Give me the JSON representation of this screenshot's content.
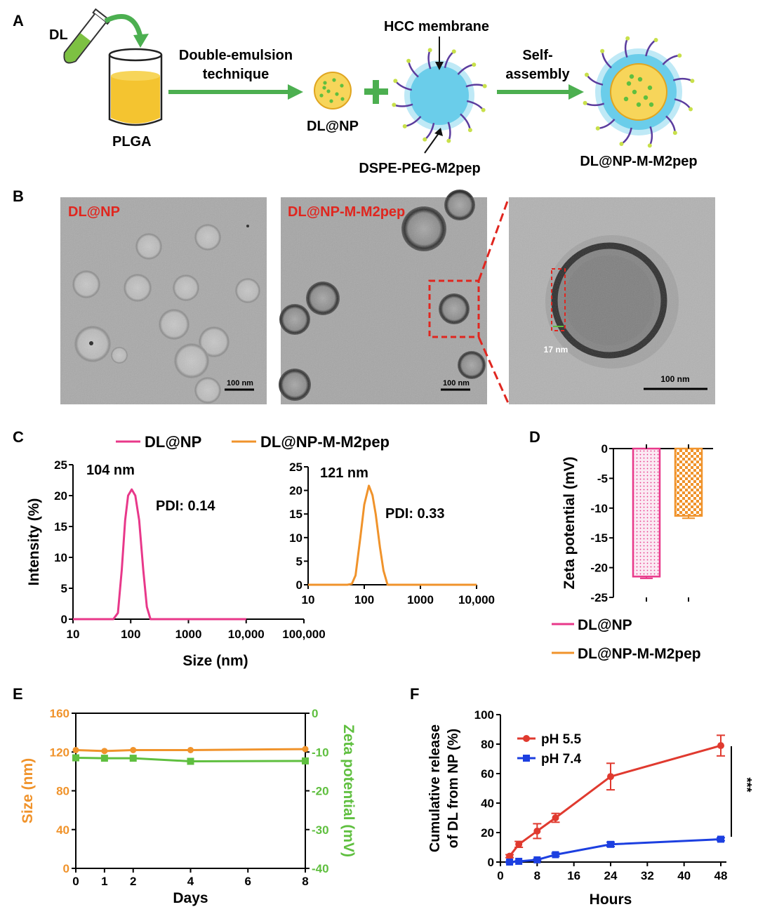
{
  "panels": {
    "A": "A",
    "B": "B",
    "C": "C",
    "D": "D",
    "E": "E",
    "F": "F"
  },
  "schematic": {
    "dl": "DL",
    "plga": "PLGA",
    "arrow1_line1": "Double-emulsion",
    "arrow1_line2": "technique",
    "dlnp": "DL@NP",
    "hcc": "HCC membrane",
    "dspe": "DSPE-PEG-M2pep",
    "arrow2_line1": "Self-",
    "arrow2_line2": "assembly",
    "product": "DL@NP-M-M2pep",
    "colors": {
      "arrow": "#4caf50",
      "liquid": "#f4c430",
      "membrane": "#5bc8e8",
      "particle": "#7dc142",
      "lipid": "#5b3c9e"
    }
  },
  "tem": {
    "label1": "DL@NP",
    "label2": "DL@NP-M-M2pep",
    "scale1": "100 nm",
    "scale2": "100 nm",
    "scale3": "100 nm",
    "thickness": "17 nm",
    "label_color": "#e0261f"
  },
  "chart_data": [
    {
      "id": "C1",
      "type": "line",
      "xscale": "log",
      "xlabel": "Size (nm)",
      "ylabel": "Intensity (%)",
      "xlim": [
        10,
        100000
      ],
      "ylim": [
        0,
        25
      ],
      "xticks": [
        {
          "v": 10,
          "label": "10"
        },
        {
          "v": 100,
          "label": "100"
        },
        {
          "v": 1000,
          "label": "1000"
        },
        {
          "v": 10000,
          "label": "10,000"
        },
        {
          "v": 100000,
          "label": "100,000"
        }
      ],
      "yticks": [
        0,
        5,
        10,
        15,
        20,
        25
      ],
      "annotation_size": "104 nm",
      "annotation_pdi": "PDI: 0.14",
      "series": [
        {
          "name": "DL@NP",
          "color": "#e8388a",
          "x": [
            10,
            50,
            60,
            70,
            80,
            90,
            104,
            120,
            140,
            165,
            190,
            220,
            300,
            1000,
            10000
          ],
          "y": [
            0,
            0,
            1,
            8,
            16,
            20,
            21,
            20,
            16,
            8,
            2,
            0,
            0,
            0,
            0
          ]
        }
      ]
    },
    {
      "id": "C2",
      "type": "line",
      "xscale": "log",
      "xlim": [
        10,
        10000
      ],
      "ylim": [
        0,
        25
      ],
      "xticks": [
        {
          "v": 10,
          "label": "10"
        },
        {
          "v": 100,
          "label": "100"
        },
        {
          "v": 1000,
          "label": "1000"
        },
        {
          "v": 10000,
          "label": "10,000"
        }
      ],
      "yticks": [
        0,
        5,
        10,
        15,
        20,
        25
      ],
      "annotation_size": "121 nm",
      "annotation_pdi": "PDI: 0.33",
      "series": [
        {
          "name": "DL@NP-M-M2pep",
          "color": "#f0932b",
          "x": [
            10,
            50,
            60,
            70,
            85,
            100,
            121,
            140,
            160,
            190,
            220,
            260,
            1000,
            10000
          ],
          "y": [
            0,
            0,
            0.2,
            2,
            10,
            17,
            21,
            19,
            15,
            8,
            3,
            0,
            0,
            0
          ]
        }
      ]
    },
    {
      "id": "D",
      "type": "bar",
      "ylabel": "Zeta potential (mV)",
      "ylim": [
        -25,
        0
      ],
      "yticks": [
        0,
        -5,
        -10,
        -15,
        -20,
        -25
      ],
      "categories": [
        "DL@NP",
        "DL@NP-M-M2pep"
      ],
      "series": [
        {
          "values": [
            -21.5,
            -11.3
          ],
          "errors": [
            0.3,
            0.4
          ],
          "colors": [
            "#e8388a",
            "#f0932b"
          ]
        }
      ]
    },
    {
      "id": "E",
      "type": "line",
      "xlabel": "Days",
      "ylabel": "Size (nm)",
      "y2label": "Zeta potential (mV)",
      "xlim": [
        0,
        8
      ],
      "ylim": [
        0,
        160
      ],
      "y2lim": [
        -40,
        0
      ],
      "xticks": [
        0,
        1,
        2,
        4,
        6,
        8
      ],
      "yticks": [
        0,
        40,
        80,
        120,
        160
      ],
      "y2ticks": [
        0,
        -10,
        -20,
        -30,
        -40
      ],
      "series": [
        {
          "name": "Size",
          "axis": "left",
          "color": "#f0932b",
          "x": [
            0,
            1,
            2,
            4,
            8
          ],
          "y": [
            122,
            121,
            122,
            122,
            123
          ]
        },
        {
          "name": "Zeta",
          "axis": "right",
          "color": "#5fbf3f",
          "x": [
            0,
            1,
            2,
            4,
            8
          ],
          "y": [
            -11.5,
            -11.6,
            -11.6,
            -12.4,
            -12.3
          ]
        }
      ],
      "axis_colors": {
        "left": "#f0932b",
        "right": "#5fbf3f"
      }
    },
    {
      "id": "F",
      "type": "line",
      "xlabel": "Hours",
      "ylabel_line1": "Cumulative release",
      "ylabel_line2": "of DL from NP (%)",
      "xlim": [
        0,
        48
      ],
      "ylim": [
        0,
        100
      ],
      "xticks": [
        0,
        8,
        16,
        24,
        32,
        40,
        48
      ],
      "yticks": [
        0,
        20,
        40,
        60,
        80,
        100
      ],
      "legend_position": "top-left",
      "significance": "***",
      "series": [
        {
          "name": "pH 5.5",
          "color": "#e03a2f",
          "marker": "circle",
          "x": [
            2,
            4,
            8,
            12,
            24,
            48
          ],
          "y": [
            4,
            12,
            21,
            30,
            58,
            79
          ],
          "err": [
            1,
            2,
            5,
            3,
            9,
            7
          ]
        },
        {
          "name": "pH 7.4",
          "color": "#1c3fe0",
          "marker": "square",
          "x": [
            2,
            4,
            8,
            12,
            24,
            48
          ],
          "y": [
            0,
            0.5,
            1.5,
            5,
            12,
            15.5
          ],
          "err": [
            0.3,
            0.3,
            0.5,
            1,
            1.5,
            1
          ]
        }
      ]
    }
  ]
}
